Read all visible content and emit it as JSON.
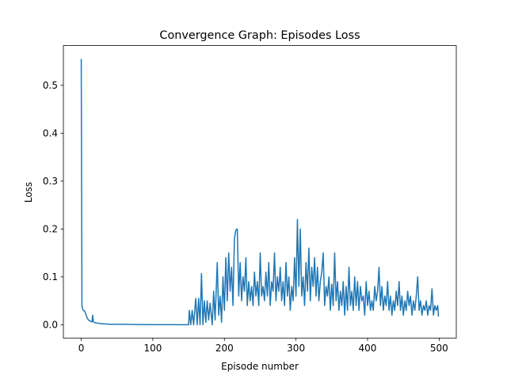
{
  "chart_data": {
    "type": "line",
    "title": "Convergence Graph: Episodes Loss",
    "xlabel": "Episode number",
    "ylabel": "Loss",
    "x": [
      0,
      1,
      2,
      3,
      5,
      8,
      10,
      13,
      15,
      16,
      17,
      20,
      25,
      30,
      40,
      60,
      80,
      100,
      120,
      150,
      151,
      153,
      155,
      157,
      160,
      162,
      164,
      166,
      168,
      170,
      172,
      174,
      176,
      178,
      180,
      183,
      185,
      187,
      190,
      192,
      194,
      196,
      198,
      200,
      202,
      204,
      206,
      208,
      210,
      212,
      214,
      216,
      218,
      220,
      222,
      224,
      226,
      228,
      230,
      232,
      234,
      236,
      238,
      240,
      242,
      244,
      246,
      248,
      250,
      252,
      254,
      256,
      258,
      260,
      262,
      264,
      266,
      268,
      270,
      272,
      274,
      276,
      278,
      280,
      282,
      284,
      286,
      288,
      290,
      292,
      294,
      296,
      298,
      300,
      302,
      304,
      306,
      308,
      310,
      312,
      314,
      316,
      318,
      320,
      322,
      324,
      326,
      328,
      330,
      332,
      334,
      336,
      338,
      340,
      342,
      344,
      346,
      348,
      350,
      352,
      354,
      356,
      358,
      360,
      362,
      364,
      366,
      368,
      370,
      372,
      374,
      376,
      378,
      380,
      382,
      384,
      386,
      388,
      390,
      392,
      394,
      396,
      398,
      400,
      402,
      404,
      406,
      408,
      410,
      412,
      414,
      416,
      418,
      420,
      422,
      424,
      426,
      428,
      430,
      432,
      434,
      436,
      438,
      440,
      442,
      444,
      446,
      448,
      450,
      452,
      454,
      456,
      458,
      460,
      462,
      464,
      466,
      468,
      470,
      472,
      474,
      476,
      478,
      480,
      482,
      484,
      486,
      488,
      490,
      492,
      494,
      496,
      498,
      499
    ],
    "series": [
      {
        "color": "#1f77b4",
        "values": [
          0.555,
          0.04,
          0.033,
          0.03,
          0.028,
          0.015,
          0.01,
          0.007,
          0.006,
          0.02,
          0.006,
          0.004,
          0.003,
          0.002,
          0.001,
          0.001,
          0.0005,
          0.0003,
          0.0002,
          0.0001,
          0.03,
          0.0,
          0.03,
          0.0,
          0.055,
          0.0,
          0.055,
          0.0,
          0.107,
          0.0,
          0.05,
          0.005,
          0.05,
          0.01,
          0.045,
          0.0,
          0.07,
          0.01,
          0.13,
          0.02,
          0.06,
          0.005,
          0.1,
          0.03,
          0.14,
          0.05,
          0.15,
          0.07,
          0.12,
          0.04,
          0.18,
          0.198,
          0.2,
          0.06,
          0.13,
          0.05,
          0.1,
          0.07,
          0.14,
          0.04,
          0.09,
          0.05,
          0.08,
          0.04,
          0.11,
          0.06,
          0.09,
          0.04,
          0.15,
          0.06,
          0.08,
          0.05,
          0.11,
          0.06,
          0.13,
          0.04,
          0.09,
          0.07,
          0.15,
          0.05,
          0.1,
          0.07,
          0.12,
          0.05,
          0.09,
          0.04,
          0.13,
          0.06,
          0.1,
          0.03,
          0.08,
          0.05,
          0.14,
          0.06,
          0.22,
          0.08,
          0.2,
          0.06,
          0.1,
          0.04,
          0.13,
          0.07,
          0.16,
          0.05,
          0.12,
          0.08,
          0.14,
          0.06,
          0.12,
          0.05,
          0.09,
          0.11,
          0.15,
          0.04,
          0.08,
          0.06,
          0.1,
          0.03,
          0.085,
          0.04,
          0.15,
          0.05,
          0.09,
          0.03,
          0.07,
          0.04,
          0.09,
          0.02,
          0.08,
          0.03,
          0.12,
          0.04,
          0.07,
          0.03,
          0.1,
          0.04,
          0.09,
          0.03,
          0.08,
          0.05,
          0.06,
          0.02,
          0.09,
          0.04,
          0.07,
          0.03,
          0.05,
          0.03,
          0.08,
          0.05,
          0.07,
          0.12,
          0.04,
          0.08,
          0.03,
          0.06,
          0.04,
          0.09,
          0.03,
          0.06,
          0.02,
          0.05,
          0.03,
          0.07,
          0.04,
          0.09,
          0.03,
          0.06,
          0.02,
          0.05,
          0.03,
          0.07,
          0.04,
          0.06,
          0.02,
          0.05,
          0.03,
          0.06,
          0.1,
          0.03,
          0.05,
          0.02,
          0.04,
          0.03,
          0.05,
          0.02,
          0.04,
          0.03,
          0.075,
          0.02,
          0.04,
          0.03,
          0.04,
          0.017
        ]
      }
    ],
    "xlim": [
      -24.95,
      523.95
    ],
    "xticks": [
      0,
      100,
      200,
      300,
      400,
      500
    ],
    "ylim": [
      -0.0278,
      0.583
    ],
    "yticks": [
      {
        "value": 0,
        "label": "0.0"
      },
      0.1,
      0.2,
      0.3,
      0.4,
      0.5
    ]
  }
}
